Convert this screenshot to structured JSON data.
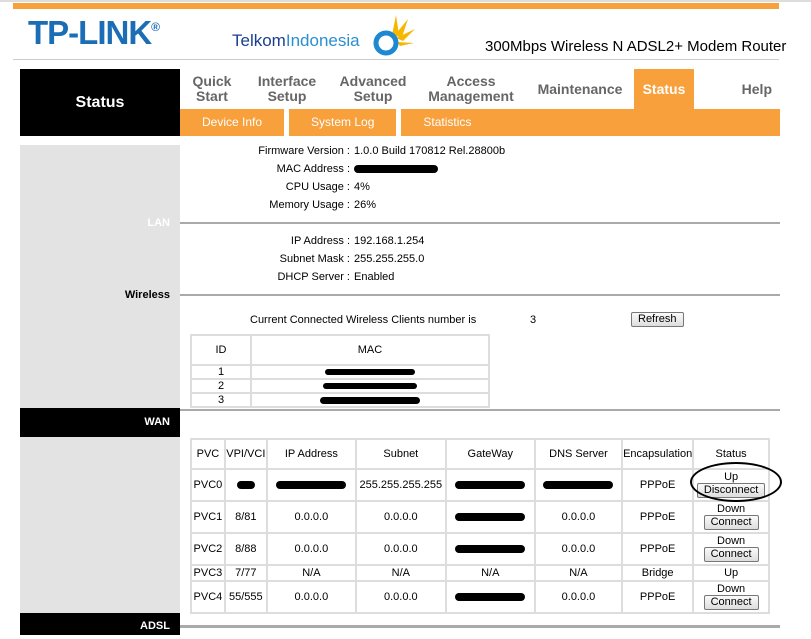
{
  "header": {
    "brand": "TP-LINK",
    "registered": "®",
    "partner_bold": "Telkom",
    "partner_light": "Indonesia",
    "product": "300Mbps Wireless N ADSL2+ Modem Router",
    "accent": "#f7a03c"
  },
  "nav": {
    "section": "Status",
    "items": [
      {
        "label": "Quick Start"
      },
      {
        "label": "Interface Setup"
      },
      {
        "label": "Advanced Setup"
      },
      {
        "label": "Access Management"
      },
      {
        "label": "Maintenance"
      },
      {
        "label": "Status"
      },
      {
        "label": "Help"
      }
    ],
    "sub": [
      "Device Info",
      "System Log",
      "Statistics"
    ]
  },
  "sections": {
    "lan": "LAN",
    "wireless": "Wireless",
    "wan": "WAN",
    "adsl": "ADSL"
  },
  "device": {
    "firmware_label": "Firmware Version :",
    "firmware": "1.0.0 Build 170812 Rel.28800b",
    "mac_label": "MAC Address :",
    "cpu_label": "CPU Usage :",
    "cpu": "4%",
    "mem_label": "Memory Usage :",
    "mem": "26%"
  },
  "lan": {
    "ip_label": "IP Address :",
    "ip": "192.168.1.254",
    "mask_label": "Subnet Mask :",
    "mask": "255.255.255.0",
    "dhcp_label": "DHCP Server :",
    "dhcp": "Enabled"
  },
  "wireless": {
    "clients_label": "Current Connected Wireless Clients number is",
    "clients": "3",
    "refresh": "Refresh",
    "headers": [
      "ID",
      "MAC"
    ],
    "ids": [
      "1",
      "2",
      "3"
    ]
  },
  "wan": {
    "headers": [
      "PVC",
      "VPI/VCI",
      "IP Address",
      "Subnet",
      "GateWay",
      "DNS Server",
      "Encapsulation",
      "Status"
    ],
    "rows": [
      {
        "pvc": "PVC0",
        "vpi": "",
        "ip": "",
        "subnet": "255.255.255.255",
        "gw": "",
        "dns": "",
        "encap": "PPPoE",
        "status": "Up",
        "action": "Disconnect"
      },
      {
        "pvc": "PVC1",
        "vpi": "8/81",
        "ip": "0.0.0.0",
        "subnet": "0.0.0.0",
        "gw": "",
        "dns": "0.0.0.0",
        "encap": "PPPoE",
        "status": "Down",
        "action": "Connect"
      },
      {
        "pvc": "PVC2",
        "vpi": "8/88",
        "ip": "0.0.0.0",
        "subnet": "0.0.0.0",
        "gw": "",
        "dns": "0.0.0.0",
        "encap": "PPPoE",
        "status": "Down",
        "action": "Connect"
      },
      {
        "pvc": "PVC3",
        "vpi": "7/77",
        "ip": "N/A",
        "subnet": "N/A",
        "gw": "N/A",
        "dns": "N/A",
        "encap": "Bridge",
        "status": "Up",
        "action": ""
      },
      {
        "pvc": "PVC4",
        "vpi": "55/555",
        "ip": "0.0.0.0",
        "subnet": "0.0.0.0",
        "gw": "",
        "dns": "0.0.0.0",
        "encap": "PPPoE",
        "status": "Down",
        "action": "Connect"
      }
    ]
  }
}
